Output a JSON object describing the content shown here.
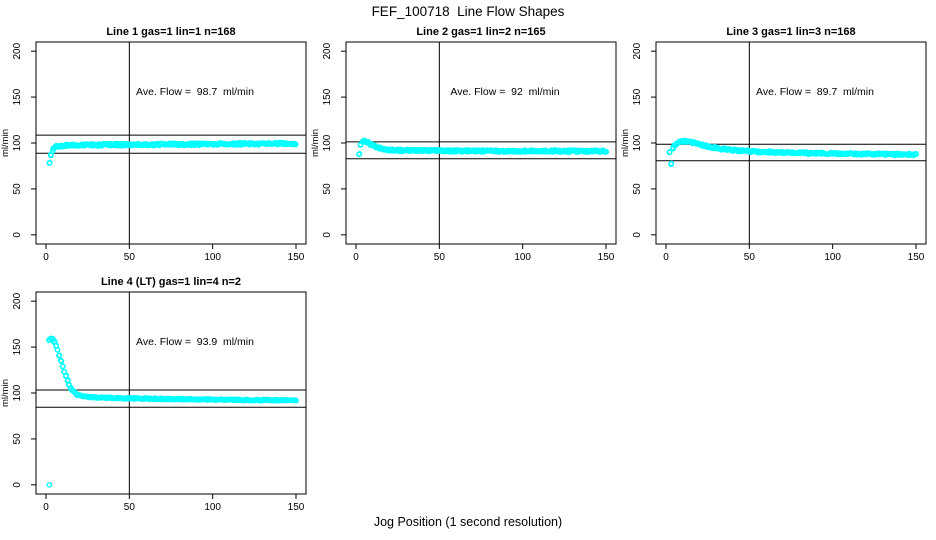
{
  "figure": {
    "title": "FEF_100718  Line Flow Shapes",
    "xlabel": "Jog Position (1 second resolution)",
    "background": "#ffffff",
    "point_color": "#00FFFF",
    "line_color": "#000000",
    "grid": "off"
  },
  "chart_data": [
    {
      "type": "scatter",
      "title": "Line 1 gas=1 lin=1 n=168",
      "line_no": 1,
      "gas": 1,
      "lin": 1,
      "n": 168,
      "ave_flow": 98.7,
      "flow_label": "Ave. Flow =  98.7  ml/min",
      "ylabel": "ml/min",
      "x_ticks": [
        0,
        50,
        100,
        150
      ],
      "y_ticks": [
        0,
        50,
        100,
        150,
        200
      ],
      "xlim": [
        -6,
        156
      ],
      "ylim": [
        -10,
        210
      ],
      "vline_x": 50,
      "ref_lines": [
        108.6,
        88.8
      ],
      "anchors": [
        [
          2,
          78
        ],
        [
          3,
          87
        ],
        [
          4,
          92.5
        ],
        [
          5,
          94.5
        ],
        [
          6,
          95.8
        ],
        [
          8,
          96.8
        ],
        [
          12,
          97.4
        ],
        [
          20,
          97.8
        ],
        [
          40,
          98.1
        ],
        [
          60,
          98.3
        ],
        [
          80,
          98.6
        ],
        [
          100,
          98.9
        ],
        [
          120,
          99.1
        ],
        [
          135,
          99.3
        ],
        [
          150,
          99.4
        ]
      ],
      "outliers": [],
      "jitter": 1.1,
      "per_x": 2
    },
    {
      "type": "scatter",
      "title": "Line 2 gas=1 lin=2 n=165",
      "line_no": 2,
      "gas": 1,
      "lin": 2,
      "n": 165,
      "ave_flow": 92,
      "flow_label": "Ave. Flow =  92  ml/min",
      "ylabel": "ml/min",
      "x_ticks": [
        0,
        50,
        100,
        150
      ],
      "y_ticks": [
        0,
        50,
        100,
        150,
        200
      ],
      "xlim": [
        -6,
        156
      ],
      "ylim": [
        -10,
        210
      ],
      "vline_x": 50,
      "ref_lines": [
        101.2,
        82.8
      ],
      "anchors": [
        [
          2,
          88
        ],
        [
          3,
          98
        ],
        [
          4,
          101
        ],
        [
          5,
          102
        ],
        [
          6,
          101.5
        ],
        [
          8,
          99.5
        ],
        [
          10,
          97.5
        ],
        [
          13,
          95
        ],
        [
          16,
          93.5
        ],
        [
          20,
          92.5
        ],
        [
          25,
          92
        ],
        [
          35,
          91.7
        ],
        [
          60,
          91.4
        ],
        [
          100,
          91.2
        ],
        [
          150,
          91.1
        ]
      ],
      "outliers": [],
      "jitter": 1.0,
      "per_x": 2
    },
    {
      "type": "scatter",
      "title": "Line 3 gas=1 lin=3 n=168",
      "line_no": 3,
      "gas": 1,
      "lin": 3,
      "n": 168,
      "ave_flow": 89.7,
      "flow_label": "Ave. Flow =  89.7  ml/min",
      "ylabel": "ml/min",
      "x_ticks": [
        0,
        50,
        100,
        150
      ],
      "y_ticks": [
        0,
        50,
        100,
        150,
        200
      ],
      "xlim": [
        -6,
        156
      ],
      "ylim": [
        -10,
        210
      ],
      "vline_x": 50,
      "ref_lines": [
        98.7,
        80.7
      ],
      "anchors": [
        [
          2,
          90
        ],
        [
          3,
          77
        ],
        [
          4,
          94
        ],
        [
          5,
          97
        ],
        [
          7,
          100
        ],
        [
          9,
          101.5
        ],
        [
          12,
          102
        ],
        [
          15,
          101
        ],
        [
          18,
          99.5
        ],
        [
          22,
          97.5
        ],
        [
          27,
          95.5
        ],
        [
          33,
          93.8
        ],
        [
          40,
          92.3
        ],
        [
          50,
          91
        ],
        [
          60,
          90.2
        ],
        [
          75,
          89.3
        ],
        [
          90,
          88.8
        ],
        [
          110,
          88.3
        ],
        [
          130,
          87.9
        ],
        [
          150,
          87.6
        ]
      ],
      "outliers": [],
      "jitter": 1.0,
      "per_x": 2
    },
    {
      "type": "scatter",
      "title": "Line 4 (LT) gas=1 lin=4 n=2",
      "line_no": 4,
      "gas": 1,
      "lin": 4,
      "n": 2,
      "ave_flow": 93.9,
      "flow_label": "Ave. Flow =  93.9  ml/min",
      "ylabel": "ml/min",
      "x_ticks": [
        0,
        50,
        100,
        150
      ],
      "y_ticks": [
        0,
        50,
        100,
        150,
        200
      ],
      "xlim": [
        -6,
        156
      ],
      "ylim": [
        -10,
        210
      ],
      "vline_x": 50,
      "ref_lines": [
        103.3,
        84.5
      ],
      "anchors": [
        [
          2,
          158
        ],
        [
          3,
          160
        ],
        [
          4,
          158.5
        ],
        [
          5,
          155.5
        ],
        [
          6,
          151.5
        ],
        [
          7,
          146.5
        ],
        [
          8,
          141
        ],
        [
          9,
          135
        ],
        [
          10,
          129
        ],
        [
          11,
          123.5
        ],
        [
          12,
          118.5
        ],
        [
          13,
          113.5
        ],
        [
          14,
          109
        ],
        [
          15,
          105.5
        ],
        [
          16,
          103
        ],
        [
          17,
          101
        ],
        [
          18,
          99.3
        ],
        [
          19,
          98.2
        ],
        [
          20,
          97.4
        ],
        [
          22,
          96.4
        ],
        [
          25,
          95.7
        ],
        [
          30,
          95.1
        ],
        [
          40,
          94.5
        ],
        [
          55,
          94
        ],
        [
          70,
          93.6
        ],
        [
          90,
          93.1
        ],
        [
          110,
          92.7
        ],
        [
          130,
          92.3
        ],
        [
          150,
          91.9
        ]
      ],
      "outliers": [
        [
          2,
          0
        ]
      ],
      "jitter": 0.6,
      "per_x": 2
    }
  ]
}
